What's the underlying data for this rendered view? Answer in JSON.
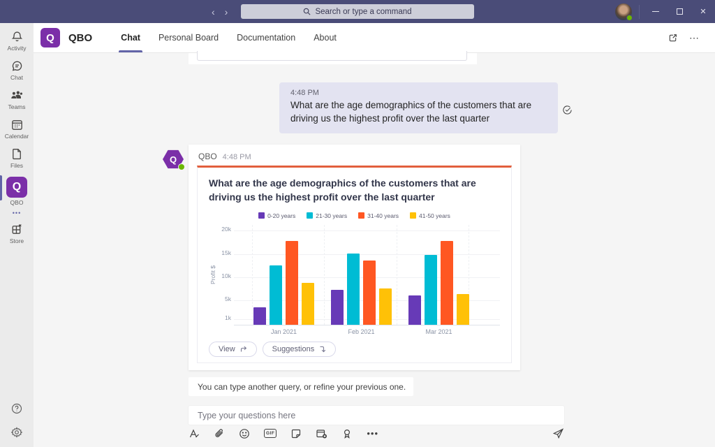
{
  "titlebar": {
    "back": "‹",
    "forward": "›",
    "search_placeholder": "Search or type a command",
    "close_glyph": "✕"
  },
  "sidebar": {
    "items": [
      {
        "label": "Activity"
      },
      {
        "label": "Chat"
      },
      {
        "label": "Teams"
      },
      {
        "label": "Calendar"
      },
      {
        "label": "Files"
      },
      {
        "label": "QBO",
        "logo_letter": "Q"
      },
      {
        "label": "Store"
      }
    ],
    "more_dots": "•••"
  },
  "app_header": {
    "logo_letter": "Q",
    "title": "QBO",
    "tabs": [
      {
        "label": "Chat",
        "active": true
      },
      {
        "label": "Personal Board",
        "active": false
      },
      {
        "label": "Documentation",
        "active": false
      },
      {
        "label": "About",
        "active": false
      }
    ],
    "more": "⋯"
  },
  "chat": {
    "user_message": {
      "time": "4:48 PM",
      "text": "What are the age demographics of the customers that are driving us the highest profit over the last quarter"
    },
    "bot": {
      "name": "QBO",
      "time": "4:48 PM",
      "avatar_letter": "Q"
    },
    "card": {
      "title": "What are the age demographics of the customers that are driving us the highest profit over the last quarter",
      "view_button": "View",
      "suggestions_button": "Suggestions"
    },
    "helper_text": "You can type another query, or refine your previous one."
  },
  "compose": {
    "placeholder": "Type your questions here",
    "gif_label": "GIF",
    "more_dots": "•••"
  },
  "colors": {
    "accent": "#6264a7",
    "logo_purple": "#7b2fa8",
    "card_accent": "#e25f3d",
    "status_green": "#6bb700"
  },
  "chart_data": {
    "type": "bar",
    "title": "What are the age demographics of the customers that are driving us the highest profit over the last quarter",
    "categories": [
      "Jan 2021",
      "Feb 2021",
      "Mar 2021"
    ],
    "series": [
      {
        "name": "0-20 years",
        "color": "#673ab7",
        "values": [
          3700,
          7500,
          6300
        ]
      },
      {
        "name": "21-30 years",
        "color": "#00bcd4",
        "values": [
          12700,
          15300,
          14900
        ]
      },
      {
        "name": "31-40 years",
        "color": "#ff5722",
        "values": [
          18000,
          13700,
          17900
        ]
      },
      {
        "name": "41-50 years",
        "color": "#ffc107",
        "values": [
          9000,
          7700,
          6500
        ]
      }
    ],
    "xlabel": "",
    "ylabel": "Profit $",
    "ylim": [
      0,
      21000
    ],
    "yticks": [
      {
        "value": 1000,
        "label": "1k"
      },
      {
        "value": 5000,
        "label": "5k"
      },
      {
        "value": 10000,
        "label": "10k"
      },
      {
        "value": 15000,
        "label": "15k"
      },
      {
        "value": 20000,
        "label": "20k"
      }
    ],
    "legend_position": "top",
    "grid": true
  }
}
